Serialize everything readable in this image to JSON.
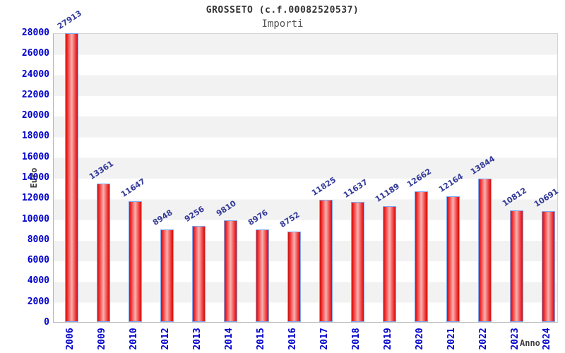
{
  "chart_data": {
    "type": "bar",
    "title": "GROSSETO (c.f.00082520537)",
    "subtitle": "Importi",
    "xlabel": "Anno",
    "ylabel": "Euro",
    "categories": [
      "2006",
      "2009",
      "2010",
      "2012",
      "2013",
      "2014",
      "2015",
      "2016",
      "2017",
      "2018",
      "2019",
      "2020",
      "2021",
      "2022",
      "2023",
      "2024"
    ],
    "values": [
      27913,
      13361,
      11647,
      8948,
      9256,
      9810,
      8976,
      8752,
      11825,
      11637,
      11189,
      12662,
      12164,
      13844,
      10812,
      10691
    ],
    "ylim": [
      0,
      28000
    ],
    "y_ticks": [
      0,
      2000,
      4000,
      6000,
      8000,
      10000,
      12000,
      14000,
      16000,
      18000,
      20000,
      22000,
      24000,
      26000,
      28000
    ],
    "grid": "alternating horizontal bands every 2000",
    "legend": "none",
    "colors": {
      "bar_edge": "#c81414",
      "bar_mid": "#f8b2b2",
      "bar_bright": "#ee2525",
      "bar_border": "#7fa8ef",
      "tick_label": "#0000cc",
      "value_label": "#333a99",
      "band_gray": "#f2f2f2",
      "band_white": "#ffffff",
      "axis_line": "#b5b5b5",
      "title_color": "#333333",
      "subtitle_color": "#565656",
      "axis_title_color": "#3d3d3d"
    }
  }
}
